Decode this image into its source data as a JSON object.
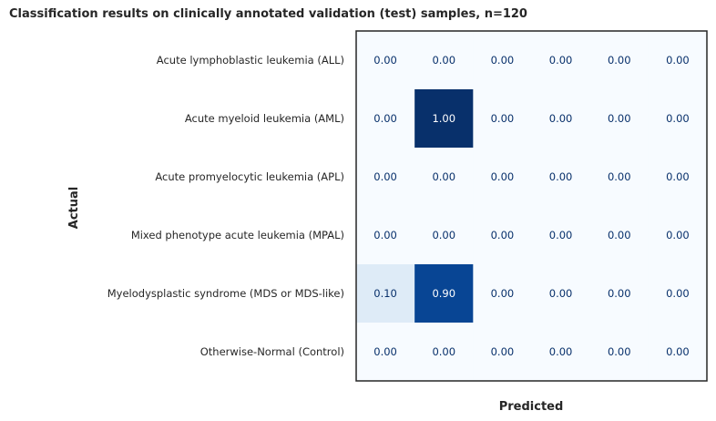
{
  "chart_data": {
    "type": "heatmap",
    "title": "Classification results on clinically annotated validation (test) samples, n=120",
    "xlabel": "Predicted",
    "ylabel": "Actual",
    "rows": [
      "Acute lymphoblastic leukemia (ALL)",
      "Acute myeloid leukemia (AML)",
      "Acute promyelocytic leukemia (APL)",
      "Mixed phenotype acute leukemia (MPAL)",
      "Myelodysplastic syndrome (MDS or MDS-like)",
      "Otherwise-Normal (Control)"
    ],
    "values": [
      [
        0.0,
        0.0,
        0.0,
        0.0,
        0.0,
        0.0
      ],
      [
        0.0,
        1.0,
        0.0,
        0.0,
        0.0,
        0.0
      ],
      [
        0.0,
        0.0,
        0.0,
        0.0,
        0.0,
        0.0
      ],
      [
        0.0,
        0.0,
        0.0,
        0.0,
        0.0,
        0.0
      ],
      [
        0.1,
        0.9,
        0.0,
        0.0,
        0.0,
        0.0
      ],
      [
        0.0,
        0.0,
        0.0,
        0.0,
        0.0,
        0.0
      ]
    ],
    "value_range": [
      0,
      1
    ],
    "colormap": "Blues",
    "grid": false,
    "frame_color": "#262626"
  }
}
